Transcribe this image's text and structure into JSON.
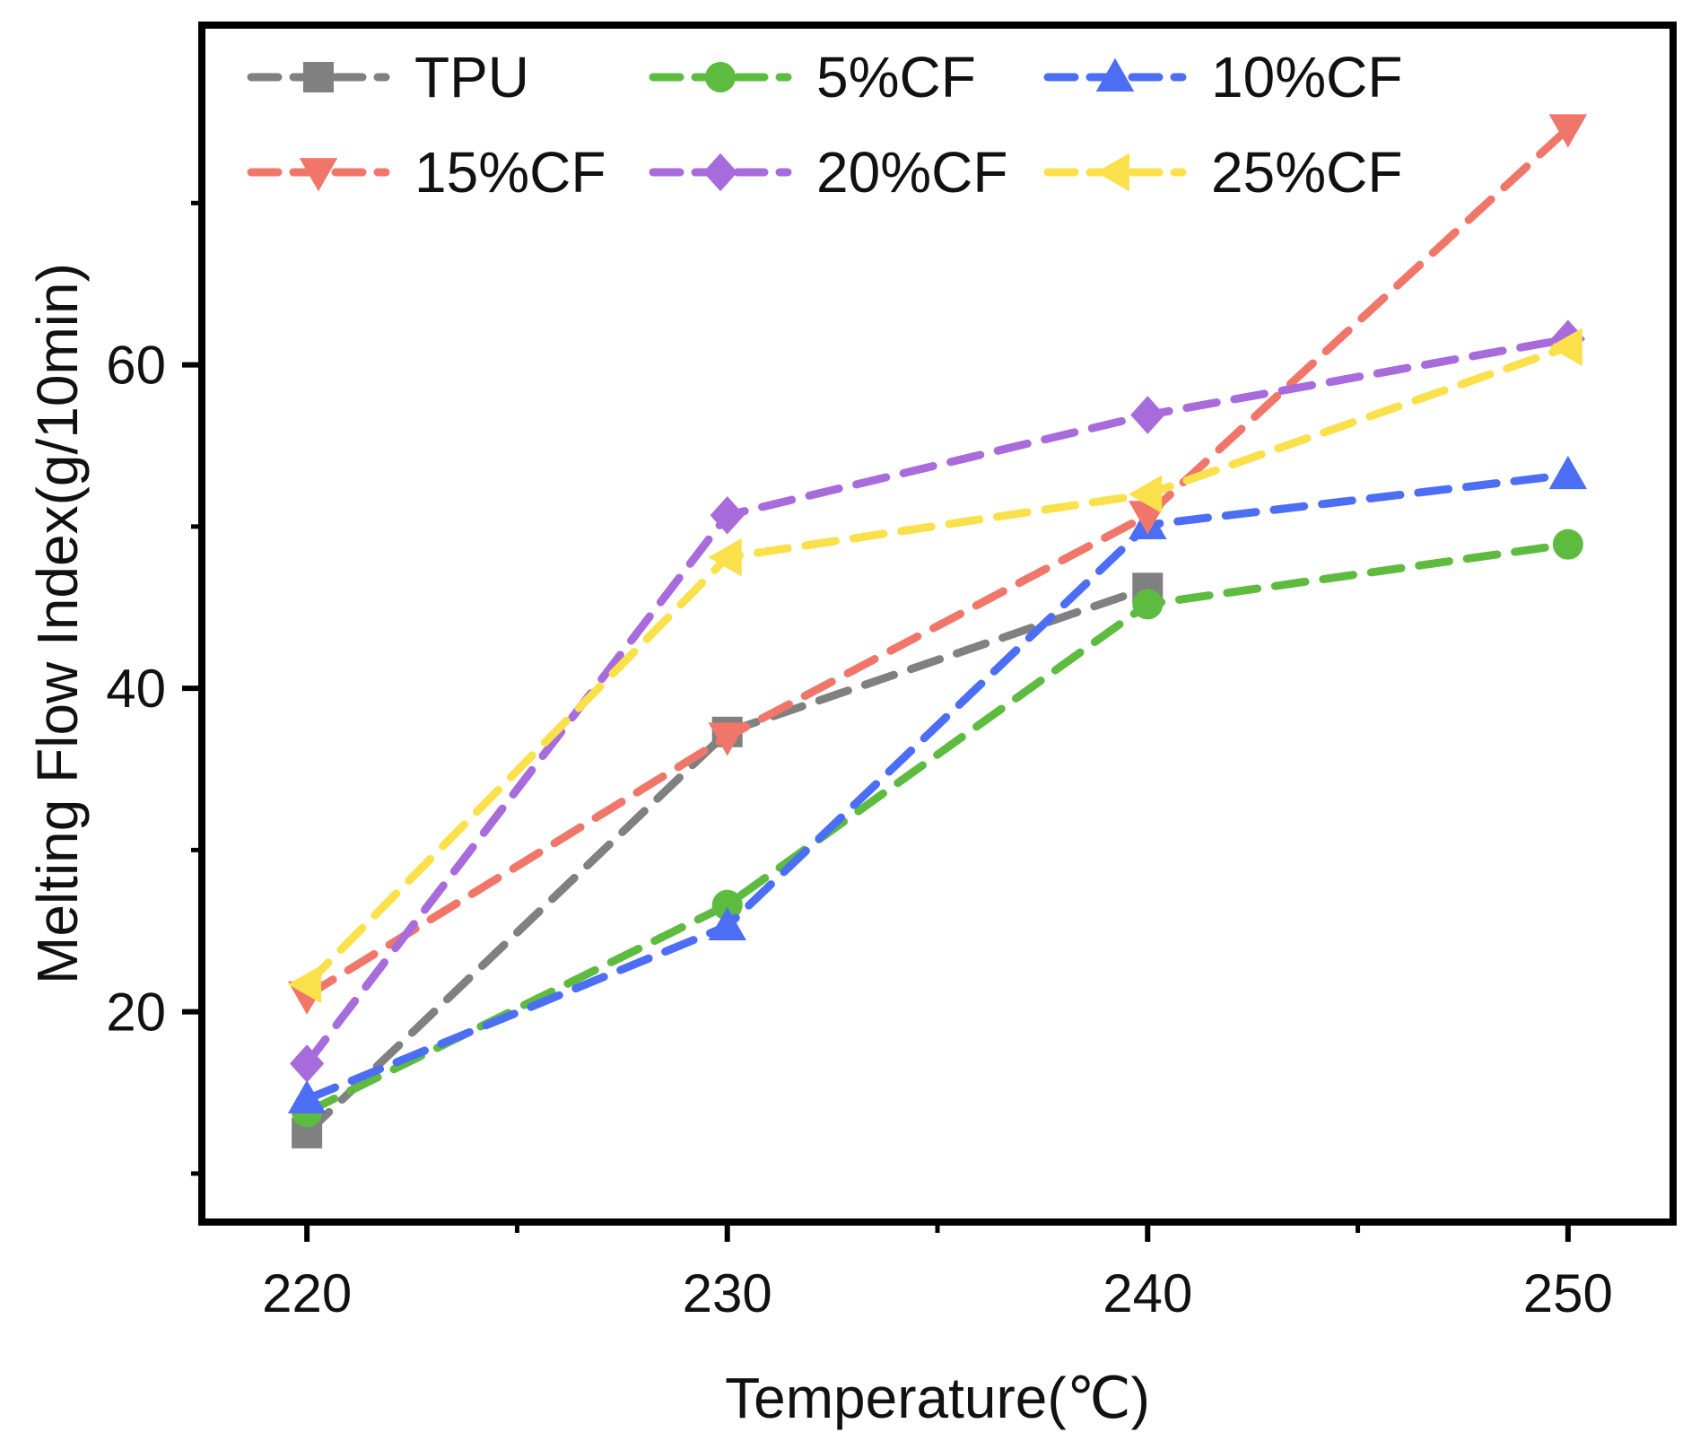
{
  "chart_data": {
    "type": "line",
    "title": "",
    "xlabel": "Temperature(℃)",
    "ylabel": "Melting Flow Index(g/10min)",
    "x": [
      220,
      230,
      240,
      250
    ],
    "xticks": [
      "220",
      "230",
      "240",
      "250"
    ],
    "xlim": [
      217.5,
      252.5
    ],
    "yticks": [
      "20",
      "40",
      "60"
    ],
    "ylim": [
      7,
      81
    ],
    "grid": false,
    "legend_position": "top",
    "series": [
      {
        "name": "TPU",
        "marker": "square",
        "color": "#808080",
        "values": [
          12.5,
          37.3,
          46.2,
          null
        ]
      },
      {
        "name": "5%CF",
        "marker": "circle",
        "color": "#5DBB3F",
        "values": [
          13.8,
          26.6,
          45.2,
          48.9
        ]
      },
      {
        "name": "10%CF",
        "marker": "triangle-up",
        "color": "#4C6EF5",
        "values": [
          14.6,
          25.3,
          50.1,
          53.2
        ]
      },
      {
        "name": "15%CF",
        "marker": "triangle-down",
        "color": "#F0766A",
        "values": [
          21.0,
          37.0,
          50.7,
          74.6
        ]
      },
      {
        "name": "20%CF",
        "marker": "diamond",
        "color": "#A86BDC",
        "values": [
          16.8,
          50.7,
          56.9,
          61.6
        ]
      },
      {
        "name": "25%CF",
        "marker": "triangle-left",
        "color": "#FAE04A",
        "values": [
          21.7,
          48.1,
          52.0,
          61.1
        ]
      }
    ]
  }
}
